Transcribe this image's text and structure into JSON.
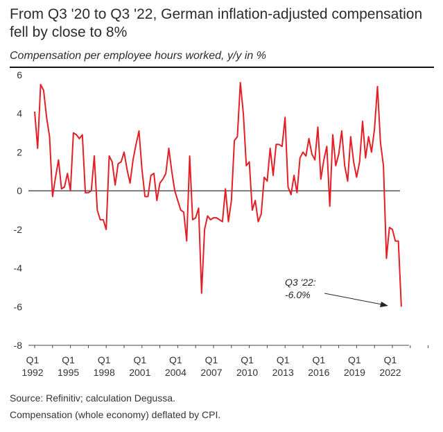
{
  "title": "From Q3 '20 to Q3 '22, German inflation-adjusted compensation fell by close to 8%",
  "subtitle": "Compensation per employee hours worked, y/y in %",
  "footnotes": {
    "source": "Source: Refinitiv; calculation Degussa.",
    "note": "Compensation (whole economy) deflated by CPI."
  },
  "annotation": {
    "line1": "Q3 '22:",
    "line2": "-6.0%"
  },
  "colors": {
    "series": "#e31e24",
    "zero_line": "#000000",
    "axis": "#444444"
  },
  "chart_data": {
    "type": "line",
    "ylim": [
      -8,
      6
    ],
    "yticks": [
      6,
      4,
      2,
      0,
      -2,
      -4,
      -6,
      -8
    ],
    "xlim": [
      "Q1 1992",
      "Q3 2025"
    ],
    "xticks": [
      {
        "top": "Q1",
        "bottom": "1992",
        "q": 0
      },
      {
        "top": "Q1",
        "bottom": "1995",
        "q": 12
      },
      {
        "top": "Q1",
        "bottom": "1998",
        "q": 24
      },
      {
        "top": "Q1",
        "bottom": "2001",
        "q": 36
      },
      {
        "top": "Q1",
        "bottom": "2004",
        "q": 48
      },
      {
        "top": "Q1",
        "bottom": "2007",
        "q": 60
      },
      {
        "top": "Q1",
        "bottom": "2010",
        "q": 72
      },
      {
        "top": "Q1",
        "bottom": "2013",
        "q": 84
      },
      {
        "top": "Q1",
        "bottom": "2016",
        "q": 96
      },
      {
        "top": "Q1",
        "bottom": "2019",
        "q": 108
      },
      {
        "top": "Q1",
        "bottom": "2022",
        "q": 120
      }
    ],
    "grid": false,
    "zero_line": true,
    "series": [
      {
        "name": "",
        "x_start": "Q1 1992",
        "frequency": "quarterly",
        "values": [
          4.1,
          2.2,
          5.5,
          5.2,
          3.8,
          2.8,
          -0.3,
          0.7,
          1.6,
          0.1,
          0.2,
          0.9,
          0.0,
          3.0,
          2.9,
          2.7,
          2.9,
          -0.1,
          -0.1,
          0.0,
          1.8,
          -1.0,
          -1.5,
          -1.5,
          -2.0,
          1.8,
          1.5,
          0.3,
          1.4,
          1.5,
          2.0,
          1.1,
          0.4,
          1.6,
          2.4,
          3.1,
          1.1,
          -0.3,
          -0.3,
          0.8,
          0.9,
          -0.5,
          0.4,
          0.6,
          0.9,
          2.2,
          1.0,
          0.0,
          -0.5,
          -1.0,
          -1.1,
          -2.6,
          1.8,
          -1.5,
          -1.4,
          -0.9,
          -5.3,
          -2.0,
          -1.3,
          -1.5,
          -1.4,
          -1.4,
          -1.5,
          -1.6,
          0.1,
          -1.6,
          -0.5,
          2.6,
          2.8,
          5.6,
          4.0,
          1.3,
          1.5,
          -1.0,
          -0.5,
          -1.6,
          -1.2,
          0.7,
          0.5,
          2.2,
          0.8,
          2.4,
          2.4,
          2.3,
          3.8,
          0.2,
          -0.2,
          0.8,
          -0.1,
          1.7,
          2.0,
          1.8,
          2.7,
          1.9,
          1.6,
          3.3,
          0.6,
          1.6,
          2.3,
          -0.8,
          2.9,
          1.3,
          1.9,
          3.1,
          1.3,
          0.5,
          2.8,
          1.5,
          0.7,
          1.5,
          3.6,
          1.7,
          2.8,
          2.0,
          3.2,
          5.4,
          2.5,
          1.3,
          -3.5,
          -1.9,
          -2.0,
          -2.6,
          -2.6,
          -6.0
        ]
      }
    ]
  }
}
